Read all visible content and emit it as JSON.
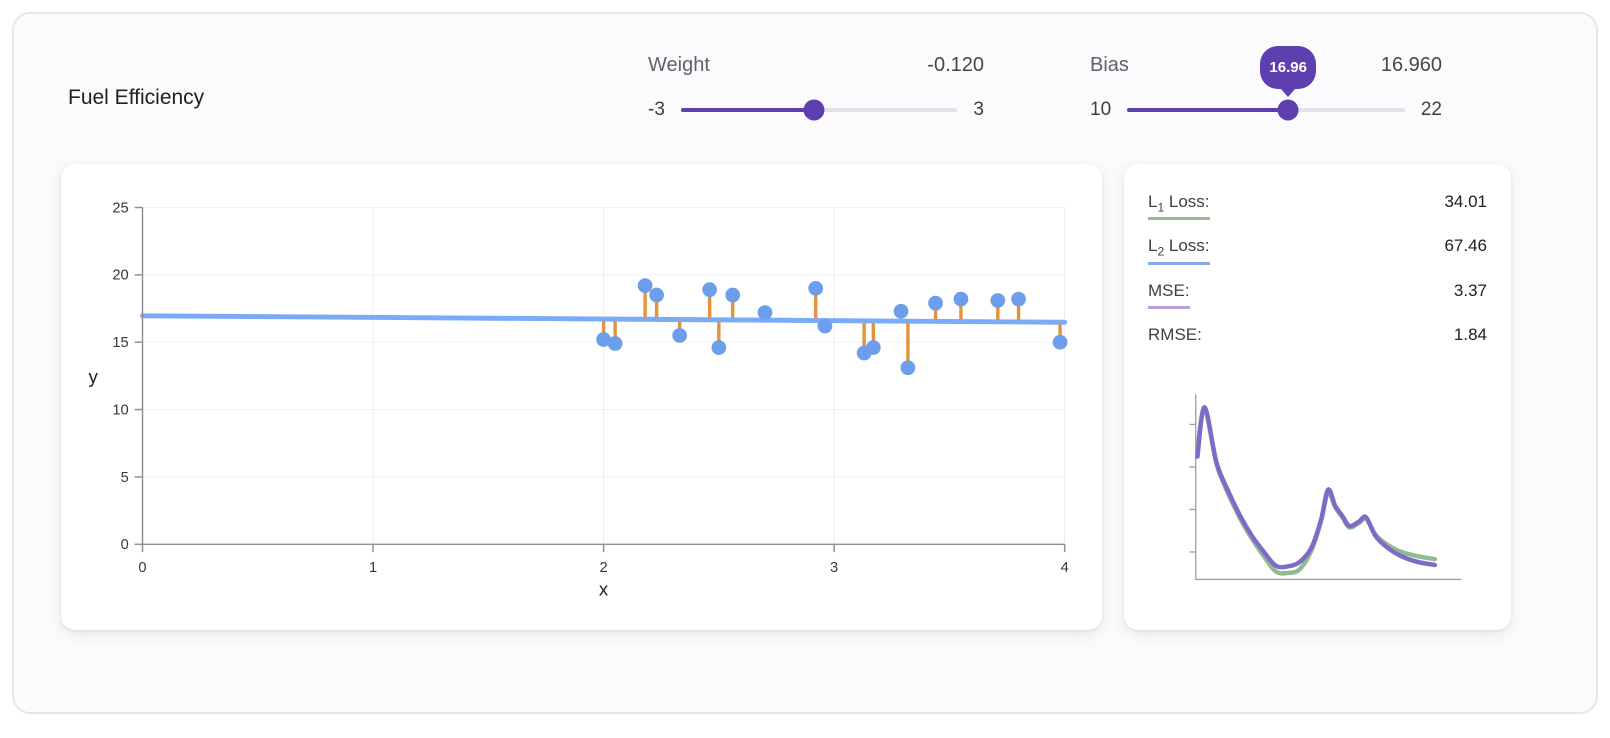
{
  "app": {
    "title": "Fuel Efficiency"
  },
  "theme": {
    "accent": "#5e3fb0",
    "slider_track": "#e3e1ea",
    "axis": "#8a8f98",
    "grid": "#e9ebef"
  },
  "controls": {
    "weight": {
      "label": "Weight",
      "display": "-0.120",
      "value": -0.12,
      "min": -3,
      "max": 3,
      "min_label": "-3",
      "max_label": "3"
    },
    "bias": {
      "label": "Bias",
      "display": "16.960",
      "value": 16.96,
      "min": 10,
      "max": 22,
      "min_label": "10",
      "max_label": "22",
      "tooltip": "16.96"
    }
  },
  "metrics": [
    {
      "base": "L",
      "sub": "1",
      "rest": " Loss:",
      "value": "34.01",
      "underline": "#97bc8c"
    },
    {
      "base": "L",
      "sub": "2",
      "rest": " Loss:",
      "value": "67.46",
      "underline": "#86aae9"
    },
    {
      "base": "MSE:",
      "sub": "",
      "rest": "",
      "value": "3.37",
      "underline": "#b6a1de"
    },
    {
      "base": "RMSE:",
      "sub": "",
      "rest": "",
      "value": "1.84",
      "underline": null
    }
  ],
  "chart_data": [
    {
      "id": "regression",
      "type": "scatter",
      "title": "",
      "xlabel": "x",
      "ylabel": "y",
      "xlim": [
        0,
        4
      ],
      "ylim": [
        0,
        25
      ],
      "xticks": [
        0,
        1,
        2,
        3,
        4
      ],
      "yticks": [
        0,
        5,
        10,
        15,
        20,
        25
      ],
      "grid": true,
      "points": [
        [
          2.0,
          15.2
        ],
        [
          2.05,
          14.9
        ],
        [
          2.18,
          19.2
        ],
        [
          2.23,
          18.5
        ],
        [
          2.33,
          15.5
        ],
        [
          2.46,
          18.9
        ],
        [
          2.5,
          14.6
        ],
        [
          2.56,
          18.5
        ],
        [
          2.7,
          17.2
        ],
        [
          2.92,
          19.0
        ],
        [
          2.96,
          16.2
        ],
        [
          3.13,
          14.2
        ],
        [
          3.17,
          14.6
        ],
        [
          3.29,
          17.3
        ],
        [
          3.32,
          13.1
        ],
        [
          3.44,
          17.9
        ],
        [
          3.55,
          18.2
        ],
        [
          3.71,
          18.1
        ],
        [
          3.8,
          18.2
        ],
        [
          3.98,
          15.0
        ]
      ],
      "model_line": {
        "weight": -0.12,
        "bias": 16.96
      },
      "residuals": true,
      "colors": {
        "points": "#6d9eeb",
        "line": "#7baaf7",
        "residual": "#e2943c"
      }
    },
    {
      "id": "loss-history",
      "type": "line",
      "title": "",
      "xlabel": "",
      "ylabel": "",
      "ylim": [
        0,
        12.8
      ],
      "grid": false,
      "legend": "none",
      "x": [
        0,
        3,
        8,
        13,
        18,
        23,
        28,
        33,
        38,
        43,
        48,
        52,
        55,
        58,
        61,
        64,
        68,
        71,
        75,
        80,
        86,
        93,
        100
      ],
      "series": [
        {
          "name": "L1 loss history",
          "color": "#8fbb8f",
          "values": [
            9.0,
            11.8,
            8.0,
            5.9,
            4.2,
            2.8,
            1.6,
            0.55,
            0.45,
            0.7,
            2.0,
            4.0,
            6.0,
            5.0,
            4.3,
            3.6,
            3.9,
            4.2,
            3.1,
            2.4,
            1.9,
            1.6,
            1.4
          ]
        },
        {
          "name": "MSE loss history",
          "color": "#7c6bc8",
          "values": [
            8.5,
            11.9,
            8.1,
            6.1,
            4.4,
            3.0,
            1.9,
            0.95,
            0.9,
            1.2,
            2.2,
            4.1,
            6.2,
            5.1,
            4.4,
            3.7,
            4.0,
            4.3,
            3.0,
            2.2,
            1.6,
            1.2,
            1.0
          ]
        }
      ]
    }
  ]
}
